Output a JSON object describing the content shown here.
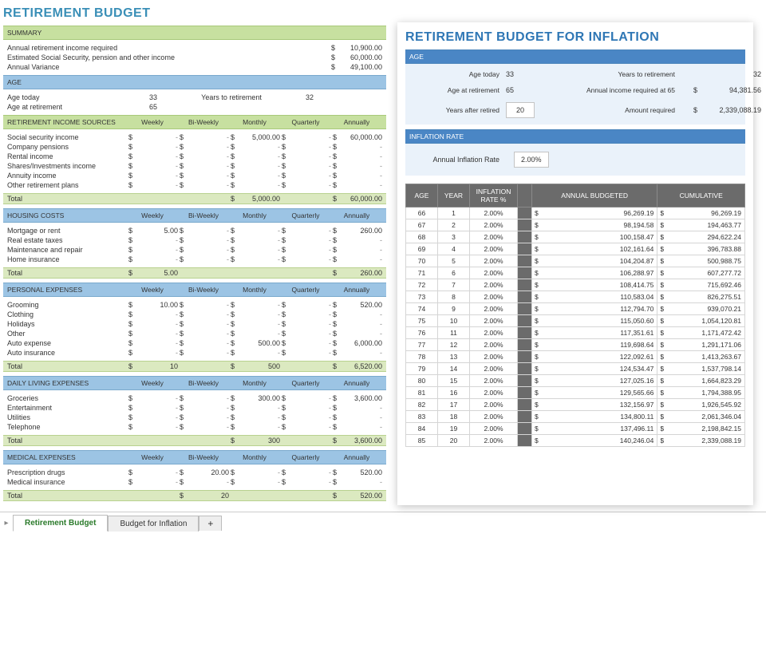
{
  "left": {
    "title": "RETIREMENT BUDGET",
    "summary_label": "SUMMARY",
    "summary_items": [
      {
        "label": "Annual retirement income required",
        "value": "10,900.00"
      },
      {
        "label": "Estimated Social Security, pension and other income",
        "value": "60,000.00"
      },
      {
        "label": "Annual Variance",
        "value": "49,100.00"
      }
    ],
    "age_label": "AGE",
    "age_today_label": "Age today",
    "age_today": "33",
    "years_to_ret_label": "Years to retirement",
    "years_to_ret": "32",
    "age_ret_label": "Age at retirement",
    "age_ret": "65",
    "period_headers": [
      "Weekly",
      "Bi-Weekly",
      "Monthly",
      "Quarterly",
      "Annually"
    ],
    "sections": [
      {
        "title": "RETIREMENT INCOME SOURCES",
        "color": "green",
        "rows": [
          {
            "label": "Social security income",
            "vals": [
              "-",
              "-",
              "5,000.00",
              "-",
              "60,000.00"
            ]
          },
          {
            "label": "Company pensions",
            "vals": [
              "-",
              "-",
              "-",
              "-",
              "-"
            ]
          },
          {
            "label": "Rental income",
            "vals": [
              "-",
              "-",
              "-",
              "-",
              "-"
            ]
          },
          {
            "label": "Shares/Investments income",
            "vals": [
              "-",
              "-",
              "-",
              "-",
              "-"
            ]
          },
          {
            "label": "Annuity income",
            "vals": [
              "-",
              "-",
              "-",
              "-",
              "-"
            ]
          },
          {
            "label": "Other retirement plans",
            "vals": [
              "-",
              "-",
              "-",
              "-",
              "-"
            ]
          }
        ],
        "total": [
          "",
          "",
          "5,000.00",
          "",
          "60,000.00"
        ]
      },
      {
        "title": "HOUSING COSTS",
        "color": "blue",
        "rows": [
          {
            "label": "Mortgage or rent",
            "vals": [
              "5.00",
              "-",
              "-",
              "-",
              "260.00"
            ]
          },
          {
            "label": "Real estate taxes",
            "vals": [
              "-",
              "-",
              "-",
              "-",
              "-"
            ]
          },
          {
            "label": "Maintenance and repair",
            "vals": [
              "-",
              "-",
              "-",
              "-",
              "-"
            ]
          },
          {
            "label": "Home insurance",
            "vals": [
              "-",
              "-",
              "-",
              "-",
              "-"
            ]
          }
        ],
        "total": [
          "5.00",
          "",
          "",
          "",
          "260.00"
        ]
      },
      {
        "title": "PERSONAL EXPENSES",
        "color": "blue",
        "rows": [
          {
            "label": "Grooming",
            "vals": [
              "10.00",
              "-",
              "-",
              "-",
              "520.00"
            ]
          },
          {
            "label": "Clothing",
            "vals": [
              "-",
              "-",
              "-",
              "-",
              "-"
            ]
          },
          {
            "label": "Holidays",
            "vals": [
              "-",
              "-",
              "-",
              "-",
              "-"
            ]
          },
          {
            "label": "Other",
            "vals": [
              "-",
              "-",
              "-",
              "-",
              "-"
            ]
          },
          {
            "label": "Auto expense",
            "vals": [
              "-",
              "-",
              "500.00",
              "-",
              "6,000.00"
            ]
          },
          {
            "label": "Auto insurance",
            "vals": [
              "-",
              "-",
              "-",
              "-",
              "-"
            ]
          }
        ],
        "total": [
          "10",
          "",
          "500",
          "",
          "6,520.00"
        ]
      },
      {
        "title": "DAILY LIVING EXPENSES",
        "color": "blue",
        "rows": [
          {
            "label": "Groceries",
            "vals": [
              "-",
              "-",
              "300.00",
              "-",
              "3,600.00"
            ]
          },
          {
            "label": "Entertainment",
            "vals": [
              "-",
              "-",
              "-",
              "-",
              "-"
            ]
          },
          {
            "label": "Utilities",
            "vals": [
              "-",
              "-",
              "-",
              "-",
              "-"
            ]
          },
          {
            "label": "Telephone",
            "vals": [
              "-",
              "-",
              "-",
              "-",
              "-"
            ]
          }
        ],
        "total": [
          "",
          "",
          "300",
          "",
          "3,600.00"
        ]
      },
      {
        "title": "MEDICAL EXPENSES",
        "color": "blue",
        "rows": [
          {
            "label": "Prescription drugs",
            "vals": [
              "-",
              "20.00",
              "-",
              "-",
              "520.00"
            ]
          },
          {
            "label": "Medical insurance",
            "vals": [
              "-",
              "-",
              "-",
              "-",
              "-"
            ]
          }
        ],
        "total": [
          "",
          "20",
          "",
          "",
          "520.00"
        ]
      }
    ],
    "total_label": "Total"
  },
  "right": {
    "title": "RETIREMENT BUDGET FOR INFLATION",
    "age_label": "AGE",
    "age_today_label": "Age today",
    "age_today": "33",
    "years_to_ret_label": "Years to retirement",
    "years_to_ret": "32",
    "age_ret_label": "Age at retirement",
    "age_ret": "65",
    "income65_label": "Annual income required at 65",
    "income65": "94,381.56",
    "years_after_label": "Years after retired",
    "years_after": "20",
    "amount_req_label": "Amount required",
    "amount_req": "2,339,088.19",
    "inflation_header": "INFLATION RATE",
    "annual_inflation_label": "Annual Inflation Rate",
    "annual_inflation": "2.00%",
    "table_headers": [
      "AGE",
      "YEAR",
      "INFLATION RATE %",
      "",
      "ANNUAL BUDGETED",
      "CUMULATIVE"
    ],
    "table_rows": [
      [
        "66",
        "1",
        "2.00%",
        "96,269.19",
        "96,269.19"
      ],
      [
        "67",
        "2",
        "2.00%",
        "98,194.58",
        "194,463.77"
      ],
      [
        "68",
        "3",
        "2.00%",
        "100,158.47",
        "294,622.24"
      ],
      [
        "69",
        "4",
        "2.00%",
        "102,161.64",
        "396,783.88"
      ],
      [
        "70",
        "5",
        "2.00%",
        "104,204.87",
        "500,988.75"
      ],
      [
        "71",
        "6",
        "2.00%",
        "106,288.97",
        "607,277.72"
      ],
      [
        "72",
        "7",
        "2.00%",
        "108,414.75",
        "715,692.46"
      ],
      [
        "73",
        "8",
        "2.00%",
        "110,583.04",
        "826,275.51"
      ],
      [
        "74",
        "9",
        "2.00%",
        "112,794.70",
        "939,070.21"
      ],
      [
        "75",
        "10",
        "2.00%",
        "115,050.60",
        "1,054,120.81"
      ],
      [
        "76",
        "11",
        "2.00%",
        "117,351.61",
        "1,171,472.42"
      ],
      [
        "77",
        "12",
        "2.00%",
        "119,698.64",
        "1,291,171.06"
      ],
      [
        "78",
        "13",
        "2.00%",
        "122,092.61",
        "1,413,263.67"
      ],
      [
        "79",
        "14",
        "2.00%",
        "124,534.47",
        "1,537,798.14"
      ],
      [
        "80",
        "15",
        "2.00%",
        "127,025.16",
        "1,664,823.29"
      ],
      [
        "81",
        "16",
        "2.00%",
        "129,565.66",
        "1,794,388.95"
      ],
      [
        "82",
        "17",
        "2.00%",
        "132,156.97",
        "1,926,545.92"
      ],
      [
        "83",
        "18",
        "2.00%",
        "134,800.11",
        "2,061,346.04"
      ],
      [
        "84",
        "19",
        "2.00%",
        "137,496.11",
        "2,198,842.15"
      ],
      [
        "85",
        "20",
        "2.00%",
        "140,246.04",
        "2,339,088.19"
      ]
    ]
  },
  "tabs": {
    "t1": "Retirement Budget",
    "t2": "Budget for Inflation",
    "add": "+",
    "arrow": "▸"
  }
}
